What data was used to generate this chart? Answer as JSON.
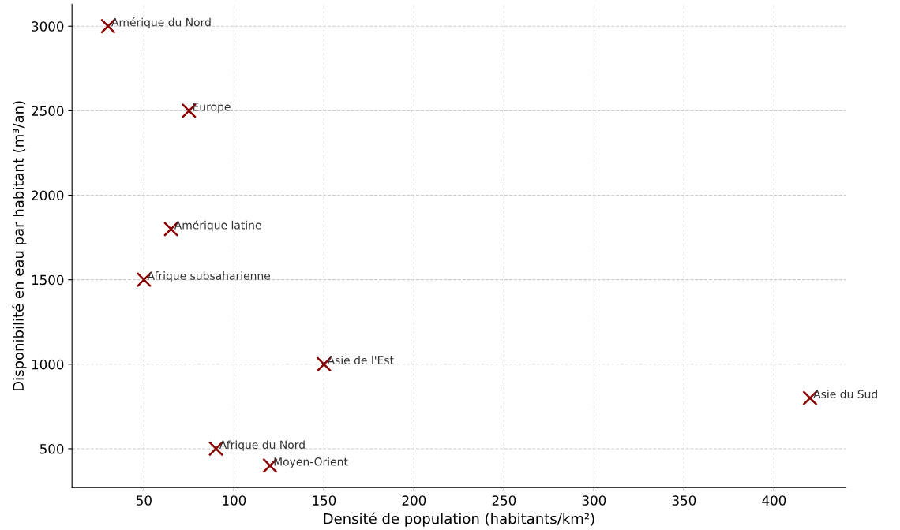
{
  "chart_data": {
    "type": "scatter",
    "xlabel": "Densité de population (habitants/km²)",
    "ylabel": "Disponibilité en eau par habitant (m³/an)",
    "x": [
      30,
      75,
      65,
      50,
      150,
      420,
      90,
      120
    ],
    "values": [
      3000,
      2500,
      1800,
      1500,
      1000,
      800,
      500,
      400
    ],
    "color": "#8b0000",
    "marker": "cross",
    "grid": true,
    "xlim": [
      10,
      440
    ],
    "xticks": [
      50,
      100,
      150,
      200,
      250,
      300,
      350,
      400
    ],
    "ylim": [
      270,
      3130
    ],
    "yticks": [
      500,
      1000,
      1500,
      2000,
      2500,
      3000
    ],
    "annotations": [
      {
        "text": "Amérique du Nord",
        "x": 30,
        "y": 3000
      },
      {
        "text": "Europe",
        "x": 75,
        "y": 2500
      },
      {
        "text": "Amérique latine",
        "x": 65,
        "y": 1800
      },
      {
        "text": "Afrique subsaharienne",
        "x": 50,
        "y": 1500
      },
      {
        "text": "Asie de l'Est",
        "x": 150,
        "y": 1000
      },
      {
        "text": "Asie du Sud",
        "x": 420,
        "y": 800
      },
      {
        "text": "Afrique du Nord",
        "x": 90,
        "y": 500
      },
      {
        "text": "Moyen-Orient",
        "x": 120,
        "y": 400
      }
    ]
  }
}
